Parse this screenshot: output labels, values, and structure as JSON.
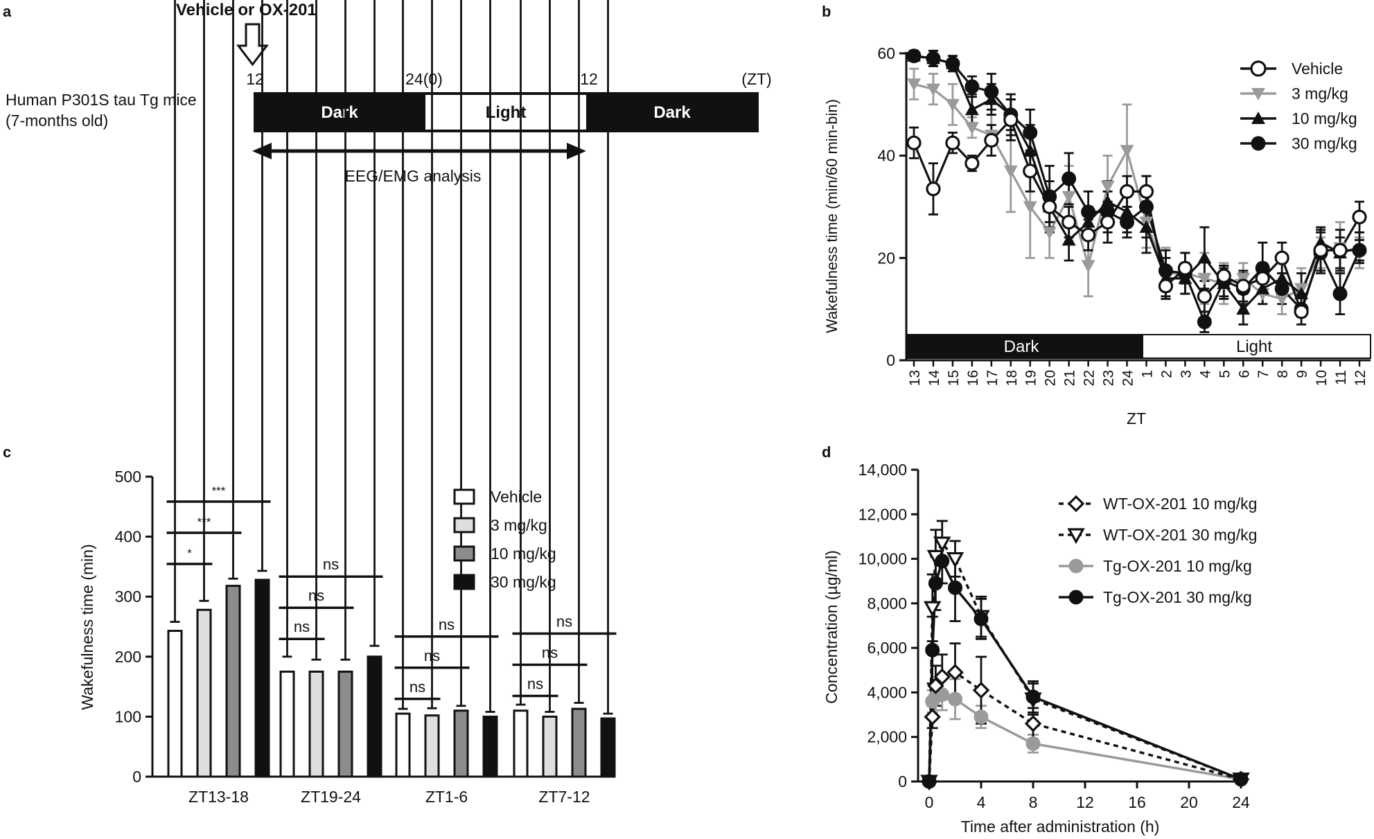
{
  "panels": {
    "a": "a",
    "b": "b",
    "c": "c",
    "d": "d"
  },
  "colors": {
    "black": "#111111",
    "gray": "#9a9a9a",
    "light": "#dedede",
    "mid": "#8c8c8c"
  },
  "panel_a": {
    "treatment": "Vehicle or OX-201",
    "subject_line1": "Human P301S tau Tg mice",
    "subject_line2": "(7-months old)",
    "ticks": [
      "12",
      "24(0)",
      "12",
      "(ZT)"
    ],
    "bar_labels": [
      "Dark",
      "Light",
      "Dark"
    ],
    "analysis_label": "EEG/EMG analysis"
  },
  "chart_data": [
    {
      "id": "b",
      "type": "line",
      "title": "",
      "xlabel": "ZT",
      "ylabel": "Wakefulness time (min/60 min-bin)",
      "ylim": [
        0,
        60
      ],
      "yticks": [
        0,
        20,
        40,
        60
      ],
      "categories": [
        "13",
        "14",
        "15",
        "16",
        "17",
        "18",
        "19",
        "20",
        "21",
        "22",
        "23",
        "24",
        "1",
        "2",
        "3",
        "4",
        "5",
        "6",
        "7",
        "8",
        "9",
        "10",
        "11",
        "12"
      ],
      "phase_labels": [
        "Dark",
        "Light"
      ],
      "legend": "top-right",
      "series": [
        {
          "name": "Vehicle",
          "marker": "circle-open",
          "color": "black",
          "values": [
            42.5,
            33.5,
            42.5,
            38.5,
            43,
            47,
            37,
            30,
            27,
            24.5,
            27,
            33,
            33,
            14.5,
            18,
            12.5,
            16.5,
            14.5,
            16,
            20,
            9.5,
            21.5,
            21.5,
            28
          ],
          "errors": [
            3,
            5,
            2,
            1.5,
            3,
            4,
            4,
            3,
            3,
            3,
            4,
            3,
            3,
            2,
            3,
            3,
            2,
            3,
            3,
            3,
            1,
            4,
            4,
            3
          ]
        },
        {
          "name": "3 mg/kg",
          "marker": "triangle-down",
          "color": "gray",
          "values": [
            54,
            53,
            50,
            45.5,
            44,
            37,
            30,
            25,
            32,
            18.5,
            34,
            41,
            27,
            17,
            17,
            16,
            15,
            16,
            13,
            12,
            14,
            21,
            22,
            21
          ],
          "errors": [
            3,
            3,
            4,
            2,
            4,
            8,
            10,
            5,
            6,
            6,
            6,
            9,
            5,
            5,
            4,
            5,
            4,
            3,
            2,
            3,
            4,
            3,
            5,
            3
          ]
        },
        {
          "name": "10 mg/kg",
          "marker": "triangle-up",
          "color": "black",
          "values": [
            59.5,
            59,
            58,
            49,
            51,
            48,
            41,
            30,
            23.5,
            27,
            31,
            29,
            26,
            16,
            16,
            20,
            15,
            10,
            14,
            16,
            13,
            23,
            21,
            22
          ],
          "errors": [
            1,
            1.5,
            1.5,
            3,
            3,
            3,
            5,
            5,
            4,
            3,
            4,
            4,
            5,
            4,
            3,
            6,
            3,
            3,
            3,
            3,
            4,
            3,
            3,
            3
          ]
        },
        {
          "name": "30 mg/kg",
          "marker": "circle-filled",
          "color": "black",
          "values": [
            59.5,
            59,
            58,
            53.5,
            52.5,
            48,
            44.5,
            32,
            35.5,
            29,
            29,
            27,
            30,
            17.5,
            17,
            7.5,
            15.5,
            14,
            18,
            14,
            10,
            21,
            13,
            21.5
          ],
          "errors": [
            1,
            1.5,
            1.5,
            2,
            3.5,
            4,
            4.5,
            6,
            5,
            4,
            4,
            3,
            6,
            4,
            4,
            2,
            3,
            3,
            5,
            3,
            3,
            4,
            4,
            2
          ]
        }
      ]
    },
    {
      "id": "c",
      "type": "bar",
      "title": "",
      "xlabel": "",
      "ylabel": "Wakefulness time (min)",
      "ylim": [
        0,
        500
      ],
      "yticks": [
        0,
        100,
        200,
        300,
        400,
        500
      ],
      "categories": [
        "ZT13-18",
        "ZT19-24",
        "ZT1-6",
        "ZT7-12"
      ],
      "legend": "top-right",
      "series": [
        {
          "name": "Vehicle",
          "fill": "#ffffff",
          "values": [
            243,
            175,
            105,
            110
          ],
          "errors": [
            15,
            25,
            8,
            10
          ]
        },
        {
          "name": "3 mg/kg",
          "fill": "#dedede",
          "values": [
            278,
            175,
            102,
            100
          ],
          "errors": [
            15,
            20,
            12,
            8
          ]
        },
        {
          "name": "10 mg/kg",
          "fill": "#8c8c8c",
          "values": [
            318,
            175,
            110,
            113
          ],
          "errors": [
            12,
            20,
            8,
            10
          ]
        },
        {
          "name": "30 mg/kg",
          "fill": "#111111",
          "values": [
            328,
            200,
            100,
            97
          ],
          "errors": [
            15,
            18,
            8,
            8
          ]
        }
      ],
      "significance": [
        {
          "group": 0,
          "from": 0,
          "to": 1,
          "label": "*"
        },
        {
          "group": 0,
          "from": 0,
          "to": 2,
          "label": "***"
        },
        {
          "group": 0,
          "from": 0,
          "to": 3,
          "label": "***"
        },
        {
          "group": 1,
          "from": 0,
          "to": 1,
          "label": "ns"
        },
        {
          "group": 1,
          "from": 0,
          "to": 2,
          "label": "ns"
        },
        {
          "group": 1,
          "from": 0,
          "to": 3,
          "label": "ns"
        },
        {
          "group": 2,
          "from": 0,
          "to": 1,
          "label": "ns"
        },
        {
          "group": 2,
          "from": 0,
          "to": 2,
          "label": "ns"
        },
        {
          "group": 2,
          "from": 0,
          "to": 3,
          "label": "ns"
        },
        {
          "group": 3,
          "from": 0,
          "to": 1,
          "label": "ns"
        },
        {
          "group": 3,
          "from": 0,
          "to": 2,
          "label": "ns"
        },
        {
          "group": 3,
          "from": 0,
          "to": 3,
          "label": "ns"
        }
      ]
    },
    {
      "id": "d",
      "type": "line",
      "title": "",
      "xlabel": "Time after administration (h)",
      "ylabel": "Concentration (µg/ml)",
      "xlim": [
        0,
        24
      ],
      "ylim": [
        0,
        14000
      ],
      "xticks": [
        0,
        4,
        8,
        12,
        16,
        20,
        24
      ],
      "yticks": [
        0,
        2000,
        4000,
        6000,
        8000,
        10000,
        12000,
        14000
      ],
      "ytick_labels": [
        "0",
        "2,000",
        "4,000",
        "6,000",
        "8,000",
        "10,000",
        "12,000",
        "14,000"
      ],
      "legend": "top-right",
      "series": [
        {
          "name": "WT-OX-201 10 mg/kg",
          "marker": "diamond-open",
          "color": "black",
          "dash": true,
          "x": [
            0,
            0.25,
            0.5,
            1,
            2,
            4,
            8,
            24
          ],
          "y": [
            0,
            2900,
            4300,
            4700,
            4900,
            4100,
            2600,
            100
          ],
          "err": [
            0,
            500,
            900,
            1000,
            1300,
            1500,
            700,
            50
          ]
        },
        {
          "name": "WT-OX-201 30 mg/kg",
          "marker": "triangle-down-open",
          "color": "black",
          "dash": true,
          "x": [
            0,
            0.25,
            0.5,
            1,
            2,
            4,
            8,
            24
          ],
          "y": [
            0,
            7800,
            10100,
            10700,
            10000,
            7400,
            3700,
            100
          ],
          "err": [
            0,
            1500,
            1200,
            1000,
            800,
            900,
            700,
            50
          ]
        },
        {
          "name": "Tg-OX-201 10 mg/kg",
          "marker": "circle-filled",
          "color": "gray",
          "dash": false,
          "x": [
            0,
            0.25,
            0.5,
            1,
            2,
            4,
            8,
            24
          ],
          "y": [
            0,
            3600,
            3800,
            3900,
            3700,
            2900,
            1700,
            100
          ],
          "err": [
            0,
            500,
            600,
            700,
            900,
            500,
            400,
            50
          ]
        },
        {
          "name": "Tg-OX-201 30 mg/kg",
          "marker": "circle-filled",
          "color": "black",
          "dash": false,
          "x": [
            0,
            0.25,
            0.5,
            1,
            2,
            4,
            8,
            24
          ],
          "y": [
            0,
            5900,
            8900,
            9900,
            8700,
            7300,
            3800,
            100
          ],
          "err": [
            0,
            1500,
            1200,
            1000,
            1500,
            900,
            700,
            50
          ]
        }
      ]
    }
  ]
}
